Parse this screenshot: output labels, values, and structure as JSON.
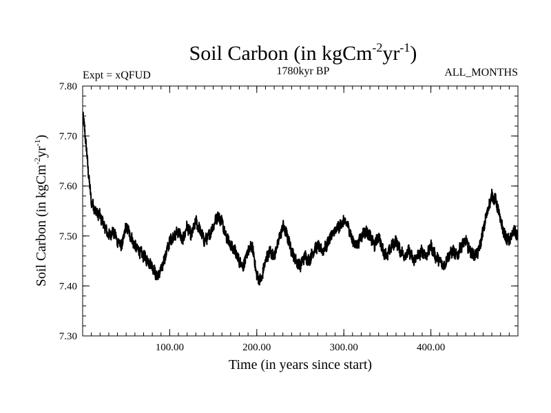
{
  "chart_data": {
    "type": "line",
    "title": "Soil Carbon (in kgCm",
    "title_sup1": "-2",
    "title_mid": "yr",
    "title_sup2": "-1",
    "title_end": ")",
    "left_label": "Expt = xQFUD",
    "center_label": "1780kyr BP",
    "right_label": "ALL_MONTHS",
    "xlabel": "Time (in years since start)",
    "ylabel": "Soil Carbon (in kgCm",
    "ylabel_sup1": "-2",
    "ylabel_mid": "yr",
    "ylabel_sup2": "-1",
    "ylabel_end": ")",
    "xlim": [
      0,
      500
    ],
    "ylim": [
      7.3,
      7.8
    ],
    "x_ticks": [
      100,
      200,
      300,
      400
    ],
    "x_tick_labels": [
      "100.00",
      "200.00",
      "300.00",
      "400.00"
    ],
    "y_ticks": [
      7.3,
      7.4,
      7.5,
      7.6,
      7.7,
      7.8
    ],
    "y_tick_labels": [
      "7.30",
      "7.40",
      "7.50",
      "7.60",
      "7.70",
      "7.80"
    ],
    "series": [
      {
        "name": "Soil Carbon",
        "color": "#000000",
        "x": [
          0,
          2,
          4,
          6,
          8,
          10,
          12,
          15,
          20,
          25,
          30,
          35,
          40,
          45,
          50,
          55,
          60,
          65,
          70,
          75,
          80,
          85,
          90,
          95,
          100,
          105,
          110,
          115,
          120,
          125,
          130,
          135,
          140,
          145,
          150,
          155,
          160,
          165,
          170,
          175,
          180,
          185,
          190,
          195,
          200,
          205,
          210,
          215,
          220,
          225,
          230,
          235,
          240,
          245,
          250,
          255,
          260,
          265,
          270,
          275,
          280,
          285,
          290,
          295,
          300,
          305,
          310,
          315,
          320,
          325,
          330,
          335,
          340,
          345,
          350,
          355,
          360,
          365,
          370,
          375,
          380,
          385,
          390,
          395,
          400,
          405,
          410,
          415,
          420,
          425,
          430,
          435,
          440,
          445,
          450,
          455,
          460,
          465,
          470,
          475,
          480,
          485,
          490,
          495,
          500
        ],
        "values": [
          7.74,
          7.72,
          7.68,
          7.64,
          7.6,
          7.57,
          7.56,
          7.55,
          7.54,
          7.52,
          7.5,
          7.51,
          7.49,
          7.48,
          7.52,
          7.5,
          7.48,
          7.47,
          7.46,
          7.45,
          7.44,
          7.42,
          7.43,
          7.46,
          7.49,
          7.5,
          7.51,
          7.49,
          7.52,
          7.5,
          7.53,
          7.51,
          7.49,
          7.5,
          7.52,
          7.54,
          7.53,
          7.5,
          7.48,
          7.47,
          7.45,
          7.44,
          7.47,
          7.48,
          7.42,
          7.41,
          7.45,
          7.47,
          7.46,
          7.49,
          7.52,
          7.5,
          7.47,
          7.45,
          7.44,
          7.46,
          7.45,
          7.47,
          7.48,
          7.47,
          7.48,
          7.5,
          7.51,
          7.52,
          7.53,
          7.52,
          7.49,
          7.48,
          7.5,
          7.51,
          7.5,
          7.48,
          7.5,
          7.47,
          7.46,
          7.48,
          7.49,
          7.47,
          7.46,
          7.47,
          7.45,
          7.46,
          7.47,
          7.46,
          7.48,
          7.46,
          7.45,
          7.44,
          7.46,
          7.47,
          7.46,
          7.48,
          7.49,
          7.47,
          7.46,
          7.47,
          7.51,
          7.55,
          7.58,
          7.57,
          7.53,
          7.5,
          7.49,
          7.51,
          7.5
        ]
      }
    ]
  }
}
